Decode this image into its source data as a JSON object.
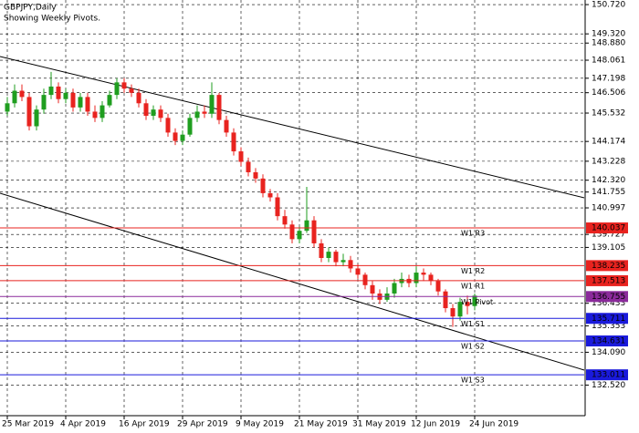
{
  "chart_data": {
    "type": "candlestick",
    "title": "GBPJPY,Daily",
    "subtitle": "Showing Weekly Pivots.",
    "categories": [
      "25 Mar 2019",
      null,
      null,
      null,
      null,
      null,
      null,
      null,
      "4 Apr 2019",
      null,
      null,
      null,
      null,
      null,
      null,
      null,
      "16 Apr 2019",
      null,
      null,
      null,
      null,
      null,
      null,
      null,
      "29 Apr 2019",
      null,
      null,
      null,
      null,
      null,
      null,
      null,
      "9 May 2019",
      null,
      null,
      null,
      null,
      null,
      null,
      null,
      "21 May 2019",
      null,
      null,
      null,
      null,
      null,
      null,
      null,
      "31 May 2019",
      null,
      null,
      null,
      null,
      null,
      null,
      null,
      "12 Jun 2019",
      null,
      null,
      null,
      null,
      null,
      null,
      null,
      "24 Jun 2019"
    ],
    "open": [
      145.6,
      146.0,
      146.6,
      146.3,
      144.9,
      145.7,
      146.4,
      146.8,
      146.2,
      146.5,
      145.8,
      146.3,
      145.6,
      145.3,
      145.9,
      146.4,
      147.0,
      146.7,
      146.5,
      146.0,
      145.4,
      145.7,
      145.3,
      144.6,
      144.2,
      144.5,
      145.3,
      145.6,
      145.5,
      146.4,
      145.2,
      144.6,
      143.7,
      143.2,
      142.7,
      142.4,
      141.7,
      141.5,
      140.6,
      140.2,
      139.5,
      139.9,
      140.4,
      139.3,
      138.6,
      138.9,
      138.4,
      138.5,
      138.1,
      137.8,
      137.3,
      136.9,
      136.6,
      136.9,
      137.4,
      137.6,
      137.4,
      137.9,
      137.8,
      137.5,
      137.0,
      136.2,
      135.8,
      136.5,
      136.3
    ],
    "high": [
      146.3,
      146.9,
      146.9,
      146.5,
      145.9,
      146.7,
      147.5,
      147.0,
      146.7,
      146.7,
      146.5,
      146.5,
      145.9,
      146.1,
      146.6,
      147.2,
      147.2,
      146.9,
      146.7,
      146.2,
      145.9,
      145.9,
      145.5,
      144.8,
      144.7,
      145.5,
      145.9,
      145.9,
      147.0,
      146.5,
      145.4,
      144.8,
      143.9,
      143.4,
      142.9,
      142.6,
      141.9,
      141.7,
      140.9,
      140.4,
      140.1,
      142.0,
      140.6,
      139.5,
      139.1,
      139.0,
      138.8,
      138.7,
      138.3,
      137.9,
      137.5,
      137.1,
      137.2,
      137.6,
      137.9,
      137.8,
      138.2,
      138.1,
      137.9,
      137.6,
      137.1,
      136.4,
      136.7,
      136.8,
      136.9
    ],
    "low": [
      145.4,
      145.8,
      146.1,
      144.7,
      144.7,
      145.5,
      146.2,
      146.0,
      146.0,
      145.6,
      145.6,
      145.4,
      145.1,
      145.1,
      145.8,
      146.2,
      146.5,
      146.3,
      145.8,
      145.2,
      145.2,
      145.1,
      144.4,
      144.0,
      144.0,
      144.4,
      145.1,
      145.3,
      145.3,
      145.0,
      144.4,
      143.5,
      143.0,
      142.5,
      142.2,
      141.5,
      141.3,
      140.4,
      140.0,
      139.3,
      139.3,
      139.8,
      139.1,
      138.4,
      138.4,
      138.2,
      138.2,
      137.9,
      137.6,
      137.1,
      136.6,
      136.4,
      136.5,
      136.7,
      137.2,
      137.2,
      137.2,
      137.5,
      137.3,
      136.8,
      136.0,
      135.3,
      135.6,
      135.9,
      136.1
    ],
    "close": [
      146.0,
      146.6,
      146.3,
      144.9,
      145.7,
      146.4,
      146.8,
      146.2,
      146.5,
      145.8,
      146.3,
      145.6,
      145.3,
      145.9,
      146.4,
      147.0,
      146.7,
      146.5,
      146.0,
      145.4,
      145.7,
      145.3,
      144.6,
      144.2,
      144.5,
      145.3,
      145.6,
      145.5,
      146.4,
      145.2,
      144.6,
      143.7,
      143.2,
      142.7,
      142.4,
      141.7,
      141.5,
      140.6,
      140.2,
      139.5,
      139.9,
      140.4,
      139.3,
      138.6,
      138.9,
      138.4,
      138.5,
      138.1,
      137.8,
      137.3,
      136.9,
      136.6,
      136.9,
      137.4,
      137.6,
      137.4,
      137.9,
      137.8,
      137.5,
      137.0,
      136.2,
      135.8,
      136.5,
      136.3,
      136.8
    ],
    "up_color": "#1f9e1f",
    "down_color": "#e8231f",
    "ylim": [
      131.1,
      150.94
    ],
    "yticks": [
      {
        "value": 150.72,
        "label": "150.720"
      },
      {
        "value": 149.32,
        "label": "149.320"
      },
      {
        "value": 148.88,
        "label": "148.880"
      },
      148.061,
      147.198,
      146.506,
      145.532,
      144.174,
      143.228,
      {
        "value": 142.32,
        "label": "142.320"
      },
      141.755,
      140.997,
      139.727,
      139.105,
      136.433,
      135.353,
      {
        "value": 134.09,
        "label": "134.090"
      },
      {
        "value": 132.52,
        "label": "132.520"
      }
    ],
    "grid": true,
    "pivots": [
      {
        "name": "W1 R3",
        "value": 140.037,
        "color": "#e8231f"
      },
      {
        "name": "W1 R2",
        "value": 138.235,
        "color": "#e8231f"
      },
      {
        "name": "W1 R1",
        "value": 137.513,
        "color": "#e8231f"
      },
      {
        "name": "W1 Pivot",
        "value": 136.755,
        "color": "#8b2a9b"
      },
      {
        "name": "W1 S1",
        "value": 135.711,
        "color": "#1a1adb"
      },
      {
        "name": "W1 S2",
        "value": 134.631,
        "color": "#1a1adb"
      },
      {
        "name": "W1 S3",
        "value": 133.011,
        "color": "#1a1adb"
      }
    ]
  }
}
